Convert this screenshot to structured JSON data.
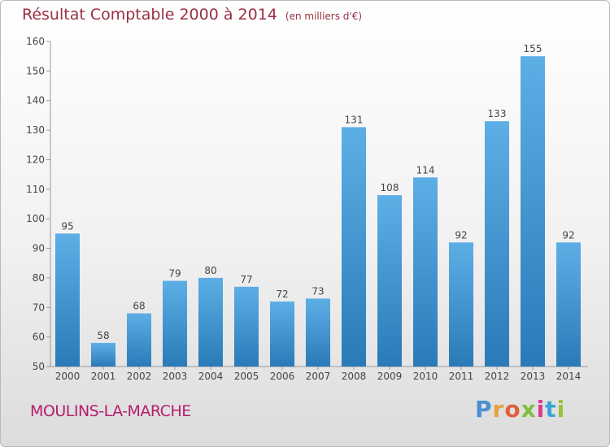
{
  "header": {
    "title": "Résultat Comptable 2000 à 2014",
    "unit": "(en milliers d'€)"
  },
  "footer": {
    "commune": "MOULINS-LA-MARCHE",
    "brand": "Proxiti"
  },
  "colors": {
    "bar_top": "#5eaee6",
    "bar_bottom": "#2a7ab8",
    "title": "#9a2f42",
    "commune": "#b51e6d"
  },
  "chart_data": {
    "type": "bar",
    "categories": [
      "2000",
      "2001",
      "2002",
      "2003",
      "2004",
      "2005",
      "2006",
      "2007",
      "2008",
      "2009",
      "2010",
      "2011",
      "2012",
      "2013",
      "2014"
    ],
    "values": [
      95,
      58,
      68,
      79,
      80,
      77,
      72,
      73,
      131,
      108,
      114,
      92,
      133,
      155,
      92
    ],
    "ylim": [
      50,
      160
    ],
    "yticks": [
      50,
      60,
      70,
      80,
      90,
      100,
      110,
      120,
      130,
      140,
      150,
      160
    ],
    "grid": false,
    "data_labels": true
  }
}
